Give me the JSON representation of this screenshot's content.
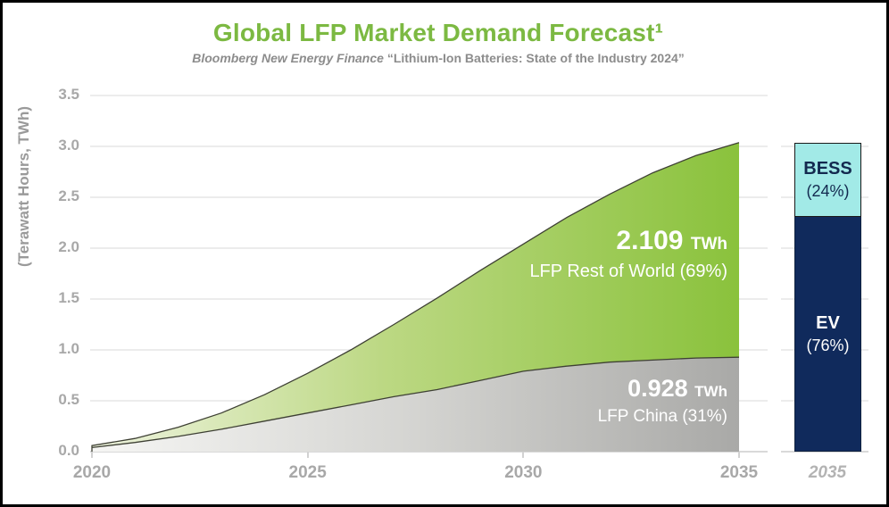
{
  "header": {
    "title": "Global LFP Market Demand Forecast¹",
    "subtitle_source": "Bloomberg New Energy Finance",
    "subtitle_report": "“Lithium-Ion Batteries: State of the Industry 2024”"
  },
  "y_axis_title": "(Terawatt Hours, TWh)",
  "chart_data": {
    "type": "area",
    "title": "Global LFP Market Demand Forecast",
    "ylabel": "(Terawatt Hours, TWh)",
    "xlabel": "",
    "ylim": [
      0,
      3.5
    ],
    "grid": true,
    "legend_position": "inline-labels",
    "y_ticks": [
      "0.0",
      "0.5",
      "1.0",
      "1.5",
      "2.0",
      "2.5",
      "3.0",
      "3.5"
    ],
    "x_ticks": [
      2020,
      2025,
      2030,
      2035
    ],
    "x": [
      2020,
      2021,
      2022,
      2023,
      2024,
      2025,
      2026,
      2027,
      2028,
      2029,
      2030,
      2031,
      2032,
      2033,
      2034,
      2035
    ],
    "series": [
      {
        "name": "LFP China",
        "stacked": true,
        "values": [
          0.04,
          0.09,
          0.15,
          0.22,
          0.3,
          0.38,
          0.46,
          0.54,
          0.61,
          0.7,
          0.79,
          0.84,
          0.88,
          0.9,
          0.92,
          0.928
        ],
        "final_value_twh": 0.928,
        "share_pct": 31
      },
      {
        "name": "LFP Rest of World",
        "stacked": true,
        "values": [
          0.02,
          0.04,
          0.09,
          0.16,
          0.26,
          0.39,
          0.54,
          0.71,
          0.9,
          1.08,
          1.25,
          1.46,
          1.65,
          1.84,
          1.99,
          2.109
        ],
        "final_value_twh": 2.109,
        "share_pct": 69
      }
    ],
    "total_2035_twh": 3.037
  },
  "annotations": {
    "rest_of_world": {
      "value": "2.109",
      "unit": "TWh",
      "label": "LFP Rest of World (69%)"
    },
    "china": {
      "value": "0.928",
      "unit": "TWh",
      "label": "LFP China (31%)"
    }
  },
  "bar_2035": {
    "x_label": "2035",
    "segments": [
      {
        "name": "BESS",
        "pct_label": "(24%)",
        "from_twh": 2.308,
        "to_twh": 3.037
      },
      {
        "name": "EV",
        "pct_label": "(76%)",
        "from_twh": 0,
        "to_twh": 2.308
      }
    ]
  },
  "colors": {
    "title_green": "#7cb942",
    "area_green": "#8ac23c",
    "area_green_light": "#eff4e0",
    "area_gray": "#a9a9a7",
    "area_gray_light": "#f6f6f4",
    "outline": "#3e4034",
    "navy": "#102a5c",
    "cyan": "#a2eae7",
    "navy_text": "#13294f",
    "axis_text": "#a8a8a8",
    "subtitle_gray": "#8c8c8c"
  }
}
